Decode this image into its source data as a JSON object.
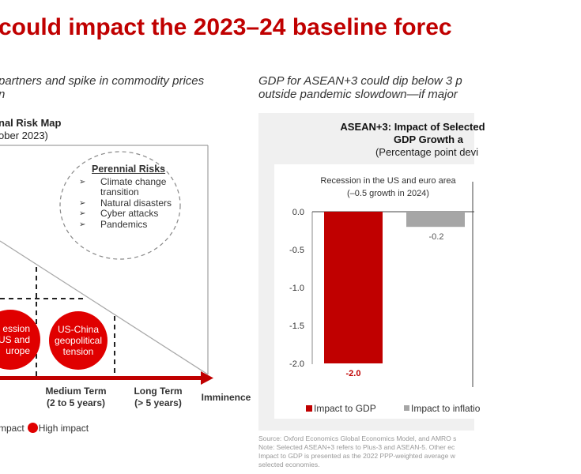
{
  "page": {
    "title": "could impact the 2023–24 baseline forec",
    "left_subtitle": [
      "partners and spike in commodity prices",
      "n"
    ],
    "right_subtitle": [
      "GDP for ASEAN+3 could dip below 3 p",
      "outside pandemic slowdown—if major"
    ]
  },
  "risk_map": {
    "title": "nal Risk Map",
    "date": "ober 2023)",
    "perennial": {
      "heading": "Perennial Risks",
      "items": [
        "Climate change",
        "transition",
        "Natural disasters",
        "Cyber attacks",
        "Pandemics"
      ]
    },
    "circles": [
      {
        "lines": [
          "ession",
          "US and",
          "urope"
        ]
      },
      {
        "lines": [
          "US-China",
          "geopolitical",
          "tension"
        ]
      }
    ],
    "axis": {
      "medium": [
        "Medium Term",
        "(2 to 5 years)"
      ],
      "long": [
        "Long Term",
        "(> 5 years)"
      ],
      "imminence": "Imminence"
    },
    "legend": {
      "partial": "mpact",
      "high": "High impact"
    },
    "colors": {
      "high_impact": "#e00000",
      "arrow": "#c00000"
    }
  },
  "chart_data": {
    "type": "bar",
    "title": [
      "ASEAN+3: Impact of Selected",
      "GDP Growth a"
    ],
    "subtitle": "(Percentage point devi",
    "panel_title": [
      "Recession in the US and euro area",
      "(–0.5 growth in 2024)"
    ],
    "categories": [
      "Impact to GDP",
      "Impact to inflatio"
    ],
    "series": [
      {
        "name": "Impact to GDP",
        "value": -2.0,
        "label": "-2.0",
        "color": "#c00000"
      },
      {
        "name": "Impact to inflatio",
        "value": -0.2,
        "label": "-0.2",
        "color": "#a6a6a6"
      }
    ],
    "yticks": [
      "0.0",
      "-0.5",
      "-1.0",
      "-1.5",
      "-2.0"
    ],
    "ytick_values": [
      0.0,
      -0.5,
      -1.0,
      -1.5,
      -2.0
    ],
    "ylim": [
      -2.0,
      0.0
    ],
    "legend": [
      "Impact to GDP",
      "Impact to inflatio"
    ],
    "legend_placement": "bottom"
  },
  "footnotes": [
    "Source: Oxford Economics Global Economics Model, and AMRO s",
    "Note: Selected ASEAN+3 refers to Plus-3 and ASEAN-5. Other ec",
    "Impact to GDP is presented as the 2022 PPP-weighted average w",
    "selected economies."
  ]
}
